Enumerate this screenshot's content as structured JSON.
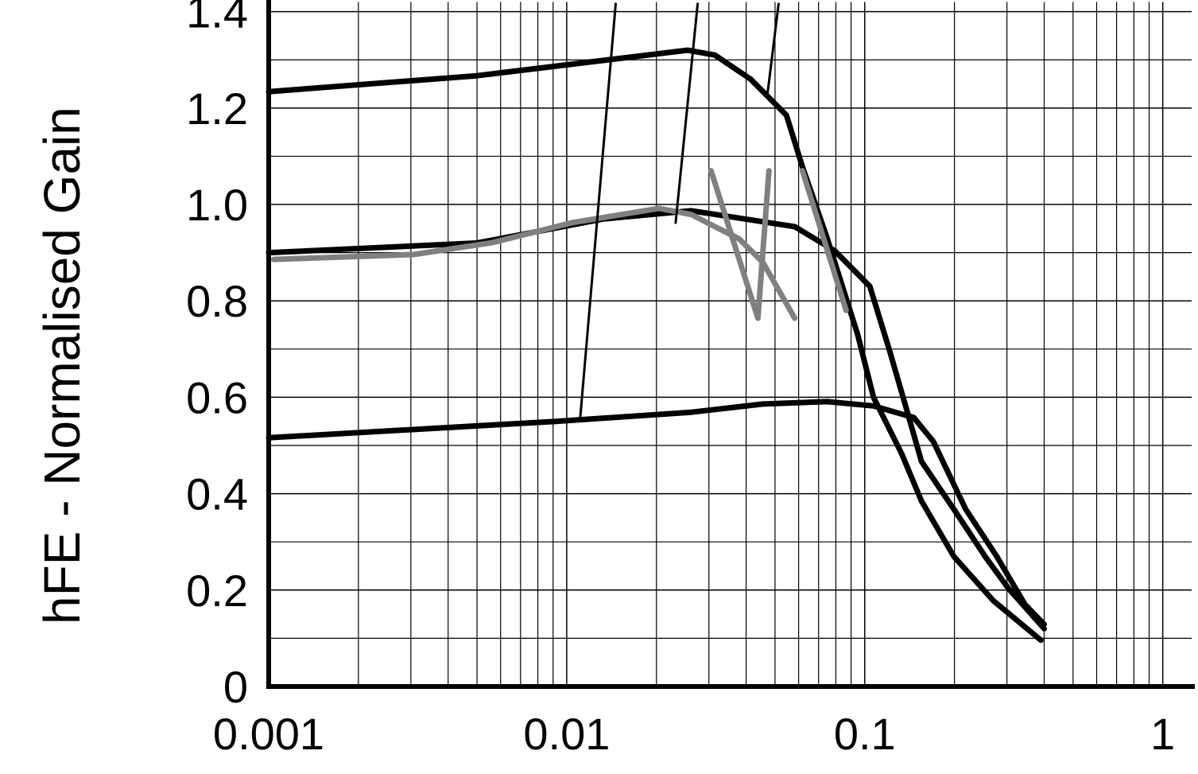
{
  "chart_data": {
    "type": "line",
    "y_label": "hFE - Normalised Gain",
    "xlog": true,
    "grid": true,
    "minor_grid": true,
    "xlim": [
      0.001,
      1.25
    ],
    "xticks": [
      0.001,
      0.01,
      0.1,
      1
    ],
    "ylim": [
      0,
      1.42
    ],
    "yticks": [
      0,
      0.2,
      0.4,
      0.6,
      0.8,
      {
        "value": 1,
        "label": "1.0"
      },
      1.2,
      1.4
    ],
    "series": [
      {
        "color": "#000000",
        "linestyle": "thick",
        "x": [
          0.001,
          0.005,
          0.0254,
          0.0314,
          0.0414,
          0.0546,
          0.0618,
          0.0748,
          0.0947,
          0.107,
          0.133,
          0.155,
          0.199,
          0.27,
          0.39
        ],
        "values": [
          1.234,
          1.267,
          1.32,
          1.31,
          1.26,
          1.185,
          1.078,
          0.93,
          0.73,
          0.6,
          0.483,
          0.385,
          0.27,
          0.178,
          0.096
        ]
      },
      {
        "color": "#000000",
        "linestyle": "thick",
        "x": [
          0.001,
          0.005,
          0.0133,
          0.0262,
          0.0582,
          0.0793,
          0.104,
          0.121,
          0.137,
          0.155,
          0.199,
          0.254,
          0.304,
          0.4
        ],
        "values": [
          0.9,
          0.92,
          0.97,
          0.987,
          0.954,
          0.904,
          0.83,
          0.698,
          0.583,
          0.467,
          0.368,
          0.269,
          0.203,
          0.12
        ]
      },
      {
        "color": "#000000",
        "linestyle": "thick",
        "x": [
          0.001,
          0.0092,
          0.0262,
          0.0455,
          0.0748,
          0.107,
          0.146,
          0.17,
          0.218,
          0.278,
          0.345,
          0.4
        ],
        "values": [
          0.516,
          0.55,
          0.569,
          0.586,
          0.591,
          0.582,
          0.558,
          0.508,
          0.368,
          0.269,
          0.17,
          0.129
        ]
      },
      {
        "color": "#808080",
        "linestyle": "thick",
        "x": [
          0.00104,
          0.00306,
          0.00565,
          0.0104,
          0.0204,
          0.0262,
          0.0314,
          0.0378,
          0.0455,
          0.0582
        ],
        "values": [
          0.886,
          0.896,
          0.921,
          0.962,
          0.992,
          0.979,
          0.954,
          0.929,
          0.88,
          0.764
        ]
      },
      {
        "color": "#808080",
        "linestyle": "thick",
        "x": [
          0.0305,
          0.0438,
          0.0477
        ],
        "values": [
          1.07,
          0.764,
          1.07
        ]
      },
      {
        "color": "#808080",
        "linestyle": "thick",
        "x": [
          0.0618,
          0.0866
        ],
        "values": [
          1.07,
          0.78
        ]
      },
      {
        "color": "#000000",
        "linestyle": "thin",
        "x": [
          0.0111,
          0.0146
        ],
        "values": [
          0.558,
          1.416
        ]
      },
      {
        "color": "#000000",
        "linestyle": "thin",
        "x": [
          0.0232,
          0.0275
        ],
        "values": [
          0.962,
          1.416
        ]
      },
      {
        "color": "#000000",
        "linestyle": "thin",
        "x": [
          0.0471,
          0.0514
        ],
        "values": [
          1.226,
          1.416
        ]
      }
    ]
  }
}
